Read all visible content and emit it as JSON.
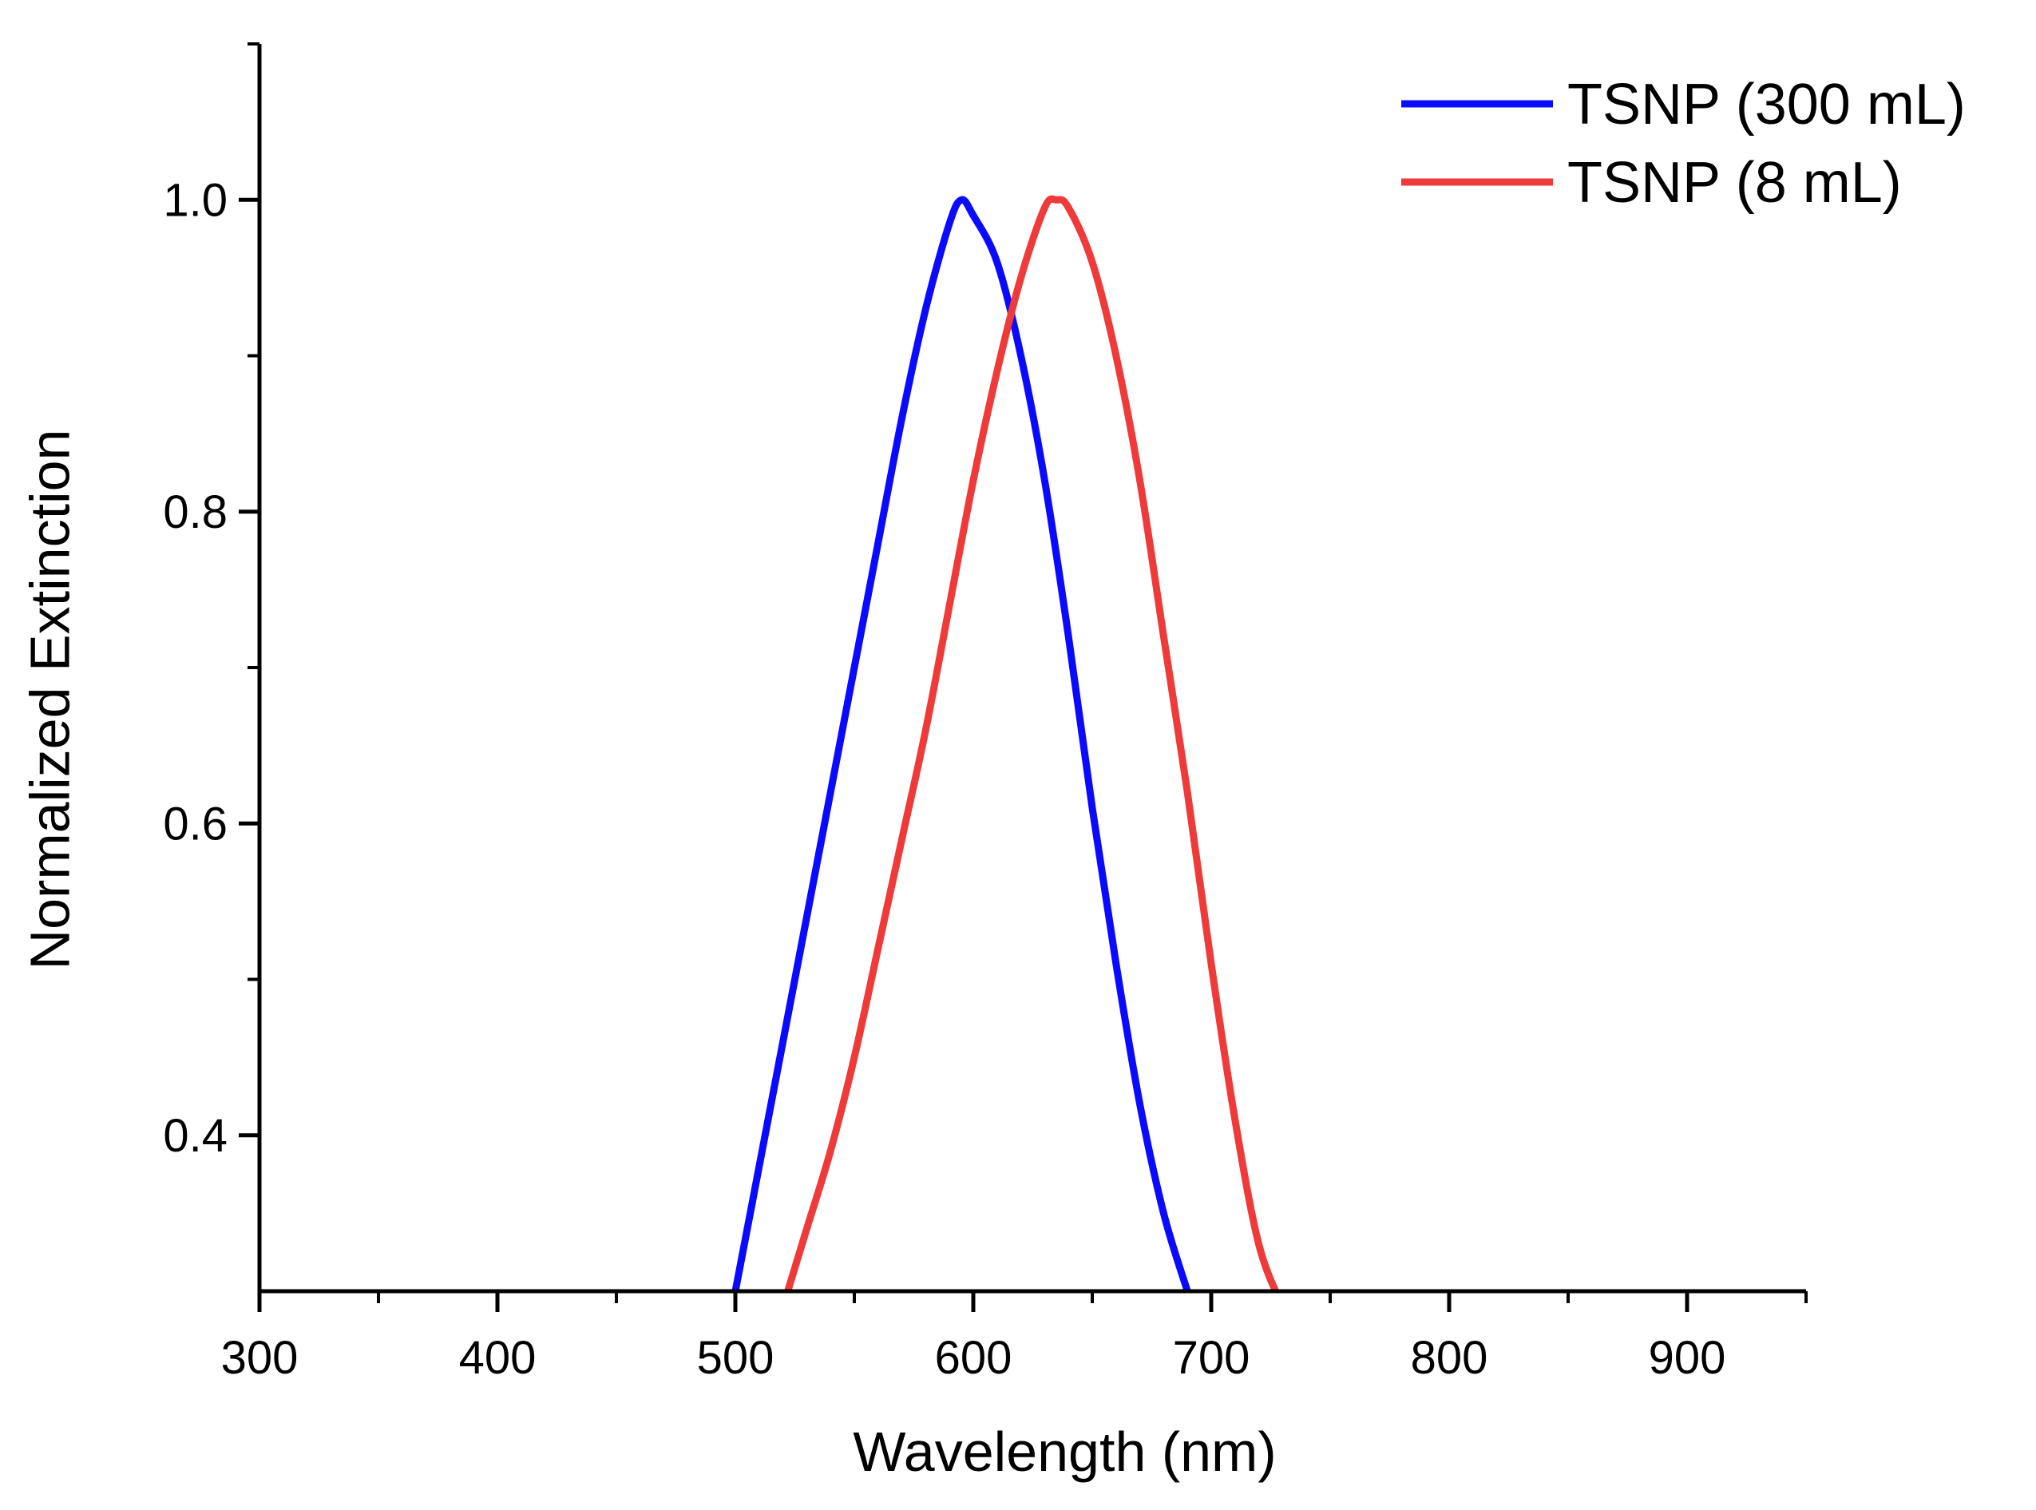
{
  "chart_data": {
    "type": "line",
    "title": "",
    "xlabel": "Wavelength (nm)",
    "ylabel": "Normalized Extinction",
    "xlim": [
      300,
      950
    ],
    "ylim": [
      0.3,
      1.1
    ],
    "x_ticks": [
      300,
      400,
      500,
      600,
      700,
      800,
      900
    ],
    "x_minor_ticks": [
      350,
      450,
      550,
      650,
      750,
      850,
      950
    ],
    "y_ticks": [
      0.4,
      0.6,
      0.8,
      1.0
    ],
    "y_tick_labels": [
      "0.4",
      "0.6",
      "0.8",
      "1.0"
    ],
    "y_minor_ticks": [
      0.5,
      0.7,
      0.9,
      1.1
    ],
    "grid": false,
    "legend_position": "top-right",
    "series": [
      {
        "name": "TSNP (300 mL)",
        "color": "#0a0aff",
        "x": [
          500,
          510,
          520,
          530,
          540,
          550,
          560,
          570,
          580,
          590,
          595,
          600,
          610,
          620,
          630,
          640,
          650,
          660,
          670,
          680,
          690,
          692
        ],
        "y": [
          0.3,
          0.38,
          0.46,
          0.54,
          0.62,
          0.7,
          0.78,
          0.86,
          0.93,
          0.985,
          1.0,
          0.99,
          0.96,
          0.9,
          0.82,
          0.72,
          0.61,
          0.51,
          0.42,
          0.35,
          0.3,
          0.29
        ]
      },
      {
        "name": "TSNP (8 mL)",
        "color": "#ef3a3a",
        "x": [
          522,
          530,
          540,
          550,
          560,
          570,
          580,
          590,
          600,
          610,
          620,
          630,
          635,
          640,
          650,
          660,
          670,
          680,
          690,
          700,
          710,
          720,
          730
        ],
        "y": [
          0.3,
          0.34,
          0.39,
          0.45,
          0.52,
          0.59,
          0.66,
          0.74,
          0.82,
          0.89,
          0.95,
          0.995,
          1.0,
          0.995,
          0.96,
          0.9,
          0.82,
          0.72,
          0.62,
          0.51,
          0.41,
          0.33,
          0.29
        ]
      }
    ]
  }
}
